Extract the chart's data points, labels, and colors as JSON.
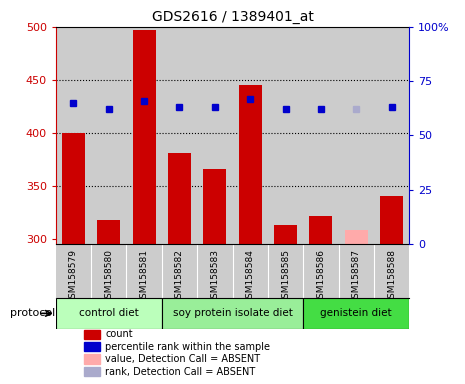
{
  "title": "GDS2616 / 1389401_at",
  "samples": [
    "GSM158579",
    "GSM158580",
    "GSM158581",
    "GSM158582",
    "GSM158583",
    "GSM158584",
    "GSM158585",
    "GSM158586",
    "GSM158587",
    "GSM158588"
  ],
  "bar_values": [
    400,
    318,
    497,
    381,
    366,
    445,
    313,
    321,
    308,
    340
  ],
  "bar_absent": [
    false,
    false,
    false,
    false,
    false,
    false,
    false,
    false,
    true,
    false
  ],
  "rank_values": [
    65,
    62,
    66,
    63,
    63,
    67,
    62,
    62,
    62,
    63
  ],
  "rank_absent": [
    false,
    false,
    false,
    false,
    false,
    false,
    false,
    false,
    true,
    false
  ],
  "ylim_left": [
    295,
    500
  ],
  "ylim_right": [
    0,
    100
  ],
  "yticks_left": [
    300,
    350,
    400,
    450,
    500
  ],
  "yticks_right": [
    0,
    25,
    50,
    75,
    100
  ],
  "ytick_labels_right": [
    "0",
    "25",
    "50",
    "75",
    "100%"
  ],
  "bar_color": "#cc0000",
  "bar_absent_color": "#ffaaaa",
  "rank_color": "#0000cc",
  "rank_absent_color": "#aaaacc",
  "protocol_groups": [
    {
      "label": "control diet",
      "start": 0,
      "end": 2,
      "color": "#bbffbb"
    },
    {
      "label": "soy protein isolate diet",
      "start": 3,
      "end": 6,
      "color": "#99ee99"
    },
    {
      "label": "genistein diet",
      "start": 7,
      "end": 9,
      "color": "#44dd44"
    }
  ],
  "legend_items": [
    {
      "color": "#cc0000",
      "label": "count"
    },
    {
      "color": "#0000cc",
      "label": "percentile rank within the sample"
    },
    {
      "color": "#ffaaaa",
      "label": "value, Detection Call = ABSENT"
    },
    {
      "color": "#aaaacc",
      "label": "rank, Detection Call = ABSENT"
    }
  ],
  "col_bg_color": "#cccccc",
  "left_axis_color": "#cc0000",
  "right_axis_color": "#0000cc",
  "plot_bg_color": "#ffffff",
  "grid_dotted_at": [
    350,
    400,
    450
  ]
}
